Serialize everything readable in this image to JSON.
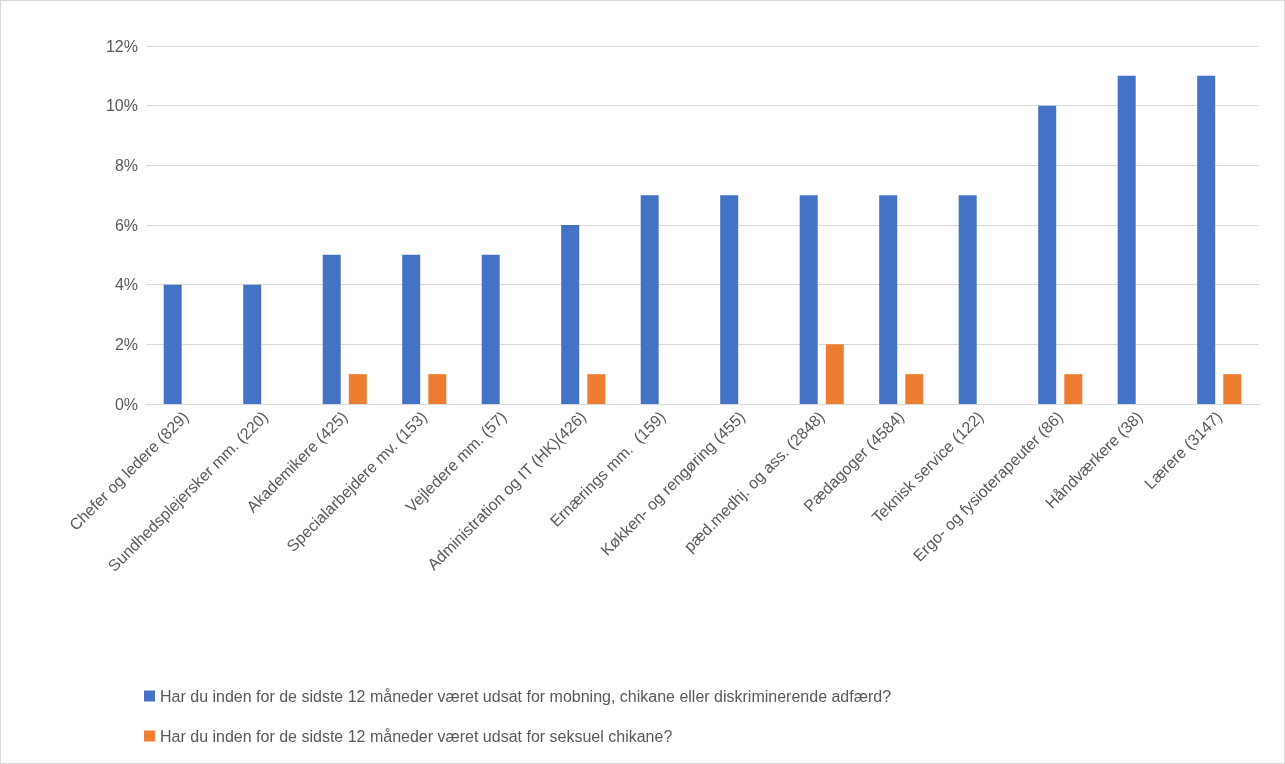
{
  "chart_data": {
    "type": "bar",
    "categories": [
      "Chefer og ledere (829)",
      "Sundhedsplejersker mm. (220)",
      "Akademikere (425)",
      "Specialarbejdere mv. (153)",
      "Vejledere mm. (57)",
      "Administration og IT (HK)(426)",
      "Ernærings mm.  (159)",
      "Køkken- og rengøring (455)",
      "pæd.medhj. og ass. (2848)",
      "Pædagoger (4584)",
      "Teknisk service (122)",
      "Ergo- og fysioterapeuter (86)",
      "Håndværkere (38)",
      "Lærere (3147)"
    ],
    "series": [
      {
        "name": "Har du inden for de sidste 12 måneder været udsat for mobning, chikane eller diskriminerende adfærd?",
        "color": "#4472c4",
        "values": [
          4,
          4,
          5,
          5,
          5,
          6,
          7,
          7,
          7,
          7,
          7,
          10,
          11,
          11
        ]
      },
      {
        "name": "Har du inden for de sidste 12 måneder været udsat for seksuel chikane?",
        "color": "#ed7d31",
        "values": [
          null,
          null,
          1,
          1,
          null,
          1,
          null,
          null,
          2,
          1,
          null,
          1,
          null,
          1
        ]
      }
    ],
    "ylim": [
      0,
      12
    ],
    "yticks": [
      {
        "value": 0,
        "label": "0%"
      },
      {
        "value": 2,
        "label": "2%"
      },
      {
        "value": 4,
        "label": "4%"
      },
      {
        "value": 6,
        "label": "6%"
      },
      {
        "value": 8,
        "label": "8%"
      },
      {
        "value": 10,
        "label": "10%"
      },
      {
        "value": 12,
        "label": "12%"
      }
    ],
    "grid": "y",
    "legend": "bottom"
  }
}
